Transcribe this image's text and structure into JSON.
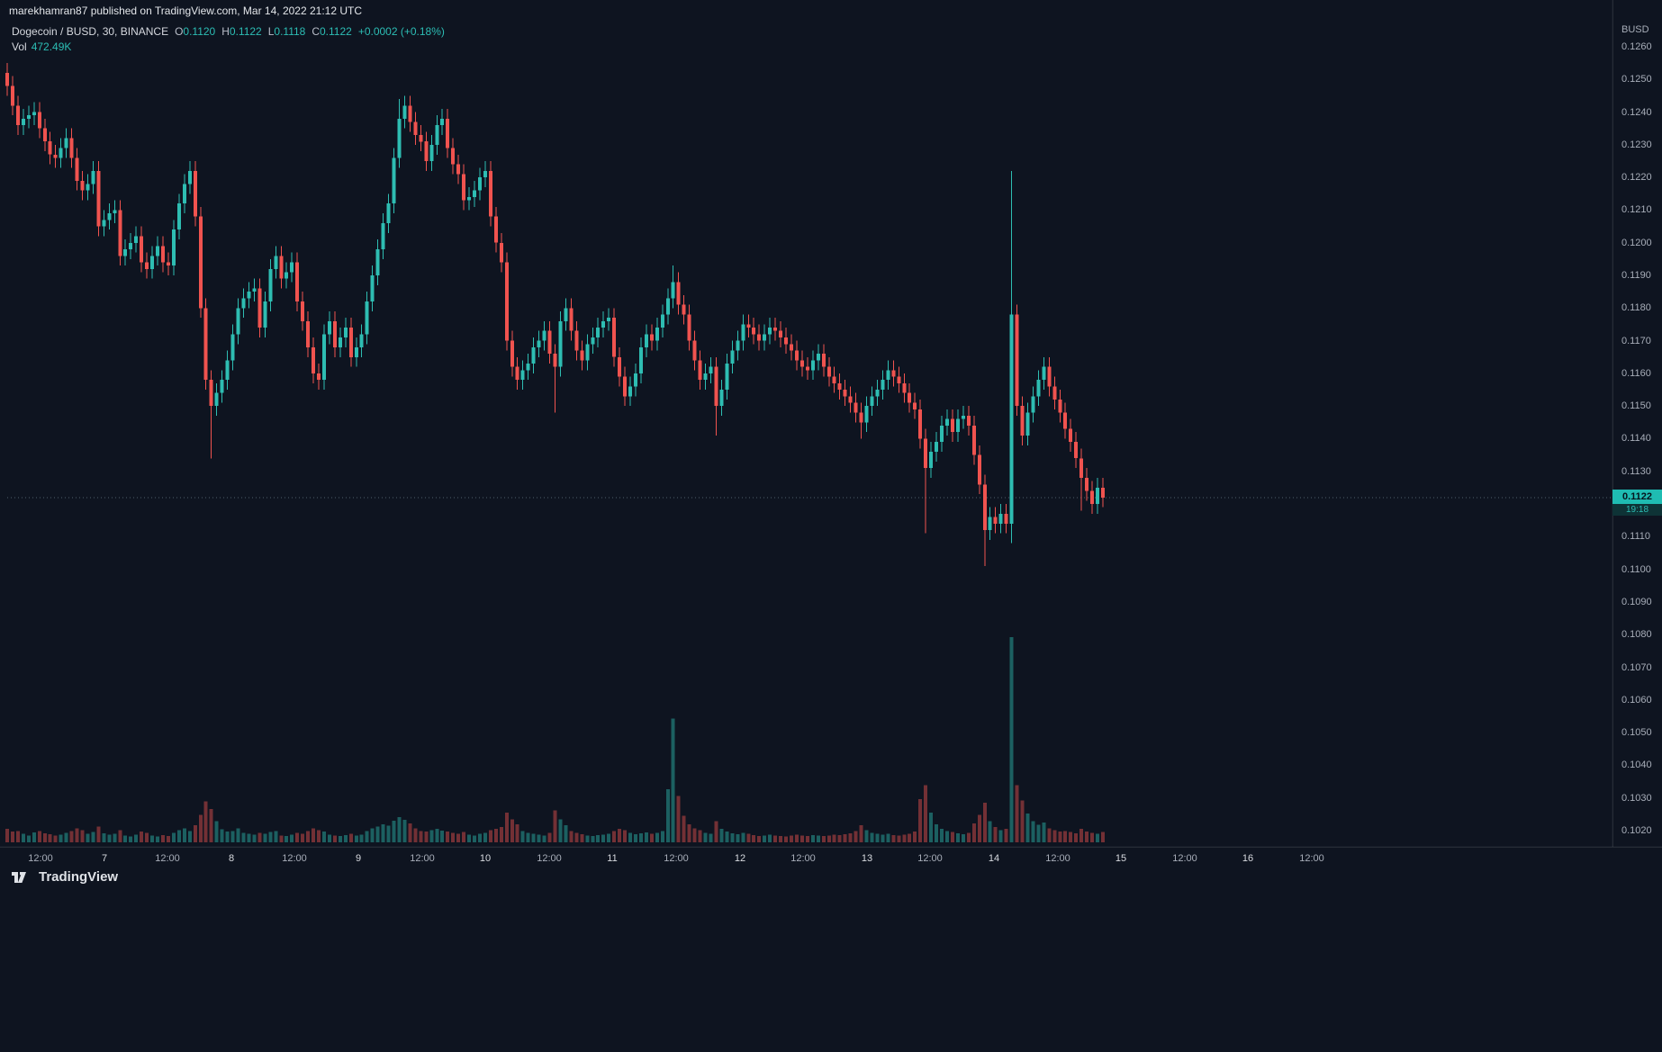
{
  "header": {
    "attribution": "marekhamran87 published on TradingView.com, Mar 14, 2022 21:12 UTC"
  },
  "legend": {
    "symbol": "Dogecoin / BUSD, 30, BINANCE",
    "ohlc": [
      {
        "k": "O",
        "v": "0.1120"
      },
      {
        "k": "H",
        "v": "0.1122"
      },
      {
        "k": "L",
        "v": "0.1118"
      },
      {
        "k": "C",
        "v": "0.1122"
      }
    ],
    "change": "+0.0002 (+0.18%)",
    "vol_label": "Vol",
    "vol_value": "472.49K"
  },
  "axis": {
    "currency": "BUSD",
    "price_labels": [
      "0.1260",
      "0.1250",
      "0.1240",
      "0.1230",
      "0.1220",
      "0.1210",
      "0.1200",
      "0.1190",
      "0.1180",
      "0.1170",
      "0.1160",
      "0.1150",
      "0.1140",
      "0.1130",
      "0.1110",
      "0.1100",
      "0.1090",
      "0.1080",
      "0.1070",
      "0.1060",
      "0.1050",
      "0.1040",
      "0.1030",
      "0.1020"
    ],
    "time_labels": [
      {
        "t": "12:00",
        "major": false
      },
      {
        "t": "7",
        "major": true
      },
      {
        "t": "12:00",
        "major": false
      },
      {
        "t": "8",
        "major": true
      },
      {
        "t": "12:00",
        "major": false
      },
      {
        "t": "9",
        "major": true
      },
      {
        "t": "12:00",
        "major": false
      },
      {
        "t": "10",
        "major": true
      },
      {
        "t": "12:00",
        "major": false
      },
      {
        "t": "11",
        "major": true
      },
      {
        "t": "12:00",
        "major": false
      },
      {
        "t": "12",
        "major": true
      },
      {
        "t": "12:00",
        "major": false
      },
      {
        "t": "13",
        "major": true
      },
      {
        "t": "12:00",
        "major": false
      },
      {
        "t": "14",
        "major": true
      },
      {
        "t": "12:00",
        "major": false
      },
      {
        "t": "15",
        "major": true
      },
      {
        "t": "12:00",
        "major": false
      },
      {
        "t": "16",
        "major": true
      },
      {
        "t": "12:00",
        "major": false
      }
    ],
    "last_price_label": "0.1122",
    "countdown": "19:18"
  },
  "footer": {
    "logo_text": "TradingView"
  },
  "colors": {
    "bg": "#0e1420",
    "up": "#2ebdb2",
    "down": "#f0534f",
    "teal": "#2cbdb4",
    "vol_up": "rgba(46,189,178,0.45)",
    "vol_down": "rgba(240,83,79,0.45)",
    "axis_text": "#a8aeb9",
    "time_major": "#d8dbe0",
    "text_bright": "#e3e6ea",
    "badge_bg": "#1fbcb2",
    "badge_text": "#06141c",
    "countdown_bg": "#0e3336",
    "countdown_text": "#2cbdb4",
    "price_line": "rgba(130,160,170,0.55)",
    "separator": "rgba(255,255,255,0.07)"
  },
  "chart_data": {
    "type": "candlestick+volume",
    "title": "Dogecoin / BUSD, 30, BINANCE",
    "interval_minutes": 30,
    "legend_ohlc": {
      "open": 0.112,
      "high": 0.1122,
      "low": 0.1118,
      "close": 0.1122,
      "change": 0.0002,
      "change_pct": 0.18
    },
    "price_axis_range": [
      0.102,
      0.126
    ],
    "time_axis_days": [
      "Mar 6 12:00",
      "Mar 7",
      "Mar 8",
      "Mar 9",
      "Mar 10",
      "Mar 11",
      "Mar 12",
      "Mar 13",
      "Mar 14",
      "Mar 15",
      "Mar 16"
    ],
    "last_price": 0.1122,
    "last_volume_k": 472.49,
    "first_open": 0.1252,
    "default_wick": 0.0003,
    "closes": [
      0.1248,
      0.1242,
      0.1236,
      0.1238,
      0.1239,
      0.124,
      0.1235,
      0.1231,
      0.1227,
      0.1226,
      0.1229,
      0.1232,
      0.1226,
      0.1219,
      0.1216,
      0.1218,
      0.1222,
      0.1205,
      0.1207,
      0.1209,
      0.121,
      0.1196,
      0.1198,
      0.12,
      0.1202,
      0.1194,
      0.1192,
      0.1196,
      0.1199,
      0.1194,
      0.1193,
      0.1204,
      0.1212,
      0.1218,
      0.1222,
      0.1208,
      0.118,
      0.1158,
      0.115,
      0.1154,
      0.1158,
      0.1164,
      0.1172,
      0.118,
      0.1183,
      0.1185,
      0.1186,
      0.1174,
      0.1182,
      0.1192,
      0.1196,
      0.1189,
      0.1191,
      0.1194,
      0.1182,
      0.1176,
      0.1168,
      0.116,
      0.1158,
      0.1172,
      0.1176,
      0.1168,
      0.1171,
      0.1174,
      0.1165,
      0.1168,
      0.1172,
      0.1182,
      0.119,
      0.1198,
      0.1206,
      0.1212,
      0.1226,
      0.1238,
      0.1242,
      0.1237,
      0.1233,
      0.1231,
      0.1225,
      0.123,
      0.1236,
      0.1238,
      0.1229,
      0.1224,
      0.1221,
      0.1213,
      0.1214,
      0.1216,
      0.122,
      0.1222,
      0.1208,
      0.12,
      0.1194,
      0.117,
      0.1162,
      0.1158,
      0.1161,
      0.1163,
      0.1168,
      0.117,
      0.1173,
      0.1166,
      0.1162,
      0.1176,
      0.118,
      0.1173,
      0.1167,
      0.1164,
      0.1169,
      0.1171,
      0.1174,
      0.1176,
      0.1177,
      0.1165,
      0.1159,
      0.1153,
      0.1156,
      0.116,
      0.1168,
      0.1172,
      0.117,
      0.1174,
      0.1178,
      0.1183,
      0.1188,
      0.1181,
      0.1178,
      0.117,
      0.1164,
      0.1158,
      0.116,
      0.1162,
      0.115,
      0.1155,
      0.1163,
      0.1167,
      0.117,
      0.1175,
      0.1174,
      0.1172,
      0.117,
      0.1172,
      0.1174,
      0.1173,
      0.1171,
      0.1169,
      0.1167,
      0.1164,
      0.1162,
      0.1161,
      0.1164,
      0.1166,
      0.1162,
      0.1159,
      0.1157,
      0.1155,
      0.1153,
      0.1151,
      0.1148,
      0.1145,
      0.115,
      0.1153,
      0.1155,
      0.1158,
      0.1161,
      0.1159,
      0.1157,
      0.1154,
      0.1151,
      0.1149,
      0.114,
      0.1131,
      0.1136,
      0.1139,
      0.1144,
      0.1146,
      0.1142,
      0.1146,
      0.1147,
      0.1144,
      0.1135,
      0.1126,
      0.1112,
      0.1116,
      0.1114,
      0.1117,
      0.1114,
      0.1178,
      0.115,
      0.1141,
      0.1148,
      0.1153,
      0.1158,
      0.1162,
      0.1156,
      0.1152,
      0.1148,
      0.1143,
      0.1139,
      0.1134,
      0.1128,
      0.1124,
      0.112,
      0.1125,
      0.1122
    ],
    "volumes_k": [
      620,
      480,
      520,
      380,
      300,
      450,
      520,
      400,
      360,
      300,
      340,
      420,
      510,
      640,
      560,
      380,
      460,
      720,
      400,
      340,
      380,
      560,
      300,
      260,
      340,
      480,
      420,
      300,
      260,
      320,
      280,
      420,
      560,
      640,
      520,
      780,
      1250,
      1850,
      1500,
      950,
      600,
      480,
      520,
      640,
      420,
      380,
      340,
      420,
      380,
      460,
      520,
      300,
      280,
      340,
      420,
      380,
      520,
      640,
      560,
      480,
      340,
      300,
      280,
      320,
      380,
      300,
      340,
      520,
      640,
      720,
      820,
      760,
      980,
      1150,
      1020,
      860,
      640,
      520,
      480,
      560,
      620,
      540,
      480,
      420,
      380,
      460,
      340,
      300,
      380,
      420,
      560,
      620,
      700,
      1350,
      1050,
      820,
      520,
      420,
      380,
      340,
      300,
      420,
      1450,
      1050,
      780,
      520,
      420,
      360,
      300,
      280,
      320,
      340,
      380,
      520,
      620,
      560,
      420,
      360,
      400,
      440,
      380,
      420,
      520,
      2400,
      5600,
      2100,
      1200,
      820,
      640,
      560,
      420,
      380,
      950,
      620,
      480,
      400,
      360,
      420,
      380,
      320,
      280,
      300,
      340,
      300,
      280,
      260,
      300,
      340,
      300,
      280,
      320,
      300,
      280,
      300,
      340,
      320,
      360,
      400,
      520,
      780,
      560,
      420,
      380,
      340,
      380,
      320,
      300,
      340,
      380,
      480,
      1950,
      2600,
      1350,
      820,
      620,
      520,
      460,
      400,
      360,
      420,
      850,
      1250,
      1800,
      950,
      700,
      560,
      620,
      9300,
      2600,
      1900,
      1300,
      950,
      800,
      900,
      640,
      560,
      480,
      520,
      460,
      400,
      620,
      480,
      420,
      380,
      472
    ],
    "wick_overrides": {
      "38": {
        "low": 0.1134
      },
      "73": {
        "high": 0.1244
      },
      "102": {
        "low": 0.1148
      },
      "124": {
        "high": 0.1193
      },
      "132": {
        "low": 0.1141
      },
      "159": {
        "low": 0.114
      },
      "171": {
        "low": 0.1111
      },
      "182": {
        "low": 0.1101
      },
      "187": {
        "high": 0.1222,
        "low": 0.1108
      },
      "193": {
        "high": 0.1165
      },
      "200": {
        "low": 0.1118
      }
    }
  }
}
